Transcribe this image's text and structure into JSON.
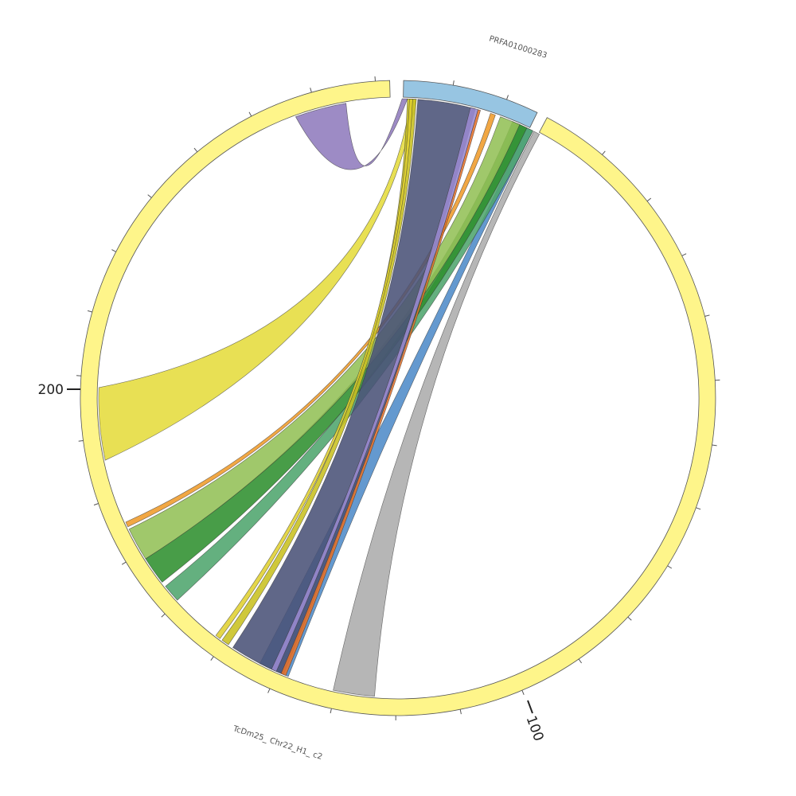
{
  "colors": {
    "seg_chr22": "#fef58a",
    "seg_prfa": "#97c5e2",
    "outline": "#555555"
  },
  "segments": [
    {
      "key": "chr22",
      "label": "TcDm25_ Chr22_H1_ c2"
    },
    {
      "key": "prfa",
      "label": "PRFA01000283"
    }
  ],
  "tick_labels": {
    "t100": "100",
    "t200": "200"
  },
  "ribbons": [
    {
      "key": "purple_self",
      "color": "#8f7bbd"
    },
    {
      "key": "grey",
      "color": "#acacac"
    },
    {
      "key": "blue",
      "color": "#4f8bc8"
    },
    {
      "key": "teal_green",
      "color": "#4ea56d"
    },
    {
      "key": "dark_green",
      "color": "#2f8f2f"
    },
    {
      "key": "light_green",
      "color": "#93c057"
    },
    {
      "key": "orange_b",
      "color": "#ef9b2a"
    },
    {
      "key": "yellow_big",
      "color": "#e5dc3c"
    },
    {
      "key": "olive",
      "color": "#c8c020"
    },
    {
      "key": "slate",
      "color": "#4a5278"
    },
    {
      "key": "orange_r",
      "color": "#e8732a"
    },
    {
      "key": "lavender",
      "color": "#9a8ad0"
    },
    {
      "key": "yellow_thin",
      "color": "#e0d030"
    }
  ]
}
